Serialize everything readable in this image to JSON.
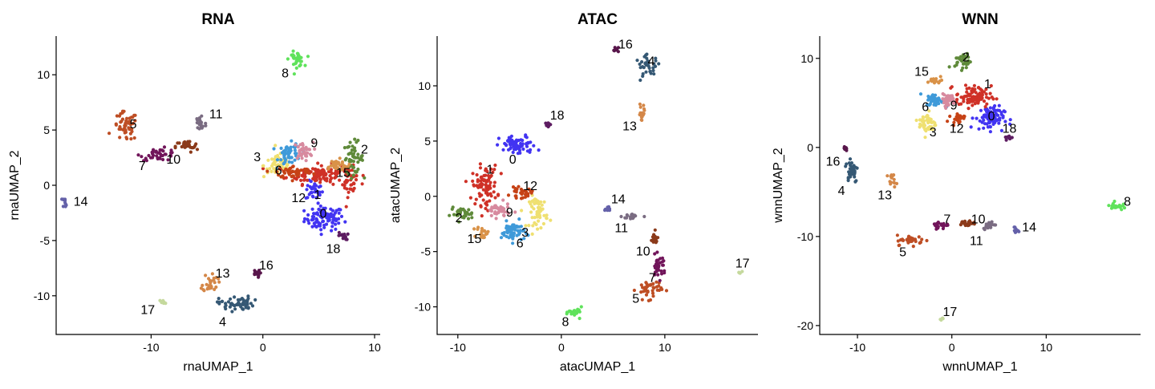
{
  "figure": {
    "panels": [
      "RNA",
      "ATAC",
      "WNN"
    ]
  },
  "chart_data": [
    {
      "type": "scatter",
      "title": "RNA",
      "xlabel": "rnaUMAP_1",
      "ylabel": "rnaUMAP_2",
      "xlim": [
        -18.5,
        10.5
      ],
      "ylim": [
        -13.5,
        13.5
      ],
      "xticks": [
        -10,
        0,
        10
      ],
      "yticks": [
        -10,
        -5,
        0,
        5,
        10
      ],
      "grid": false,
      "legend": "none",
      "clusters": [
        {
          "id": "0",
          "color": "#4234f2",
          "label_pos": [
            5.4,
            -2.5
          ],
          "blobs": [
            [
              5.5,
              -3.0,
              1.6,
              1.0,
              90
            ],
            [
              4.6,
              -0.5,
              0.7,
              0.8,
              30
            ]
          ]
        },
        {
          "id": "1",
          "color": "#cf3127",
          "label_pos": [
            4.9,
            -0.8
          ],
          "blobs": [
            [
              5.0,
              1.0,
              2.6,
              0.8,
              120
            ],
            [
              7.8,
              0.3,
              0.6,
              1.2,
              30
            ]
          ]
        },
        {
          "id": "2",
          "color": "#5f8a3a",
          "label_pos": [
            9.1,
            3.3
          ],
          "blobs": [
            [
              8.1,
              2.5,
              0.8,
              1.3,
              50
            ]
          ]
        },
        {
          "id": "3",
          "color": "#efe071",
          "label_pos": [
            -0.5,
            2.6
          ],
          "blobs": [
            [
              1.4,
              1.8,
              1.2,
              1.0,
              55
            ]
          ]
        },
        {
          "id": "5",
          "color": "#be4e24",
          "label_pos": [
            -11.6,
            5.6
          ],
          "blobs": [
            [
              -12.3,
              5.3,
              1.0,
              1.2,
              50
            ]
          ]
        },
        {
          "id": "6",
          "color": "#3f9ad9",
          "label_pos": [
            1.4,
            1.4
          ],
          "blobs": [
            [
              2.4,
              2.8,
              0.9,
              0.9,
              50
            ]
          ]
        },
        {
          "id": "7",
          "color": "#71155a",
          "label_pos": [
            -10.8,
            1.8
          ],
          "blobs": [
            [
              -9.3,
              2.8,
              1.5,
              0.5,
              40
            ]
          ]
        },
        {
          "id": "8",
          "color": "#5fe25b",
          "label_pos": [
            2.0,
            10.2
          ],
          "blobs": [
            [
              3.0,
              11.4,
              0.6,
              0.6,
              30
            ]
          ]
        },
        {
          "id": "9",
          "color": "#d78a9f",
          "label_pos": [
            4.6,
            3.9
          ],
          "blobs": [
            [
              3.6,
              3.1,
              0.8,
              0.7,
              35
            ]
          ]
        },
        {
          "id": "10",
          "color": "#8b3a1a",
          "label_pos": [
            -8.0,
            2.4
          ],
          "blobs": [
            [
              -6.8,
              3.5,
              0.9,
              0.5,
              30
            ]
          ]
        },
        {
          "id": "11",
          "color": "#7a6c82",
          "label_pos": [
            -4.2,
            6.5
          ],
          "blobs": [
            [
              -5.6,
              5.6,
              0.5,
              0.9,
              25
            ]
          ]
        },
        {
          "id": "12",
          "color": "#c64216",
          "label_pos": [
            3.2,
            -1.1
          ],
          "blobs": [
            [
              2.8,
              1.2,
              1.5,
              0.5,
              50
            ]
          ]
        },
        {
          "id": "13",
          "color": "#d48748",
          "label_pos": [
            -3.6,
            -7.9
          ],
          "blobs": [
            [
              -4.7,
              -8.8,
              0.6,
              0.8,
              30
            ]
          ]
        },
        {
          "id": "14",
          "color": "#6461a9",
          "label_pos": [
            -16.3,
            -1.4
          ],
          "blobs": [
            [
              -17.7,
              -1.5,
              0.2,
              0.4,
              10
            ]
          ]
        },
        {
          "id": "15",
          "color": "#d99248",
          "label_pos": [
            7.2,
            1.2
          ],
          "blobs": [
            [
              6.5,
              1.8,
              1.1,
              0.5,
              35
            ]
          ]
        },
        {
          "id": "16",
          "color": "#58164b",
          "label_pos": [
            0.3,
            -7.2
          ],
          "blobs": [
            [
              -0.6,
              -8.0,
              0.3,
              0.3,
              14
            ]
          ]
        },
        {
          "id": "17",
          "color": "#c5d99d",
          "label_pos": [
            -10.3,
            -11.2
          ],
          "blobs": [
            [
              -9.0,
              -10.6,
              0.3,
              0.2,
              8
            ]
          ]
        },
        {
          "id": "18",
          "color": "#5d1c61",
          "label_pos": [
            6.3,
            -5.7
          ],
          "blobs": [
            [
              7.2,
              -4.6,
              0.4,
              0.3,
              12
            ]
          ]
        },
        {
          "id": "4",
          "color": "#355874",
          "label_pos": [
            -3.6,
            -12.3
          ],
          "blobs": [
            [
              -2.4,
              -10.7,
              1.4,
              0.6,
              55
            ]
          ]
        }
      ]
    },
    {
      "type": "scatter",
      "title": "ATAC",
      "xlabel": "atacUMAP_1",
      "ylabel": "atacUMAP_2",
      "xlim": [
        -12,
        19
      ],
      "ylim": [
        -12.5,
        14.5
      ],
      "xticks": [
        -10,
        0,
        10
      ],
      "yticks": [
        -10,
        -5,
        0,
        5,
        10
      ],
      "grid": false,
      "legend": "none",
      "clusters": [
        {
          "id": "0",
          "color": "#4234f2",
          "label_pos": [
            -4.7,
            3.4
          ],
          "blobs": [
            [
              -4.2,
              4.6,
              1.6,
              0.8,
              70
            ]
          ]
        },
        {
          "id": "1",
          "color": "#cf3127",
          "label_pos": [
            -6.9,
            2.5
          ],
          "blobs": [
            [
              -7.4,
              1.0,
              1.1,
              1.6,
              90
            ]
          ]
        },
        {
          "id": "2",
          "color": "#5f8a3a",
          "label_pos": [
            -9.9,
            -1.9
          ],
          "blobs": [
            [
              -9.6,
              -1.6,
              1.0,
              0.5,
              35
            ]
          ]
        },
        {
          "id": "3",
          "color": "#efe071",
          "label_pos": [
            -3.5,
            -3.2
          ],
          "blobs": [
            [
              -2.2,
              -1.4,
              0.8,
              1.3,
              55
            ]
          ]
        },
        {
          "id": "4",
          "color": "#355874",
          "label_pos": [
            8.7,
            12.3
          ],
          "blobs": [
            [
              8.4,
              11.8,
              1.1,
              0.8,
              35
            ]
          ]
        },
        {
          "id": "5",
          "color": "#be4e24",
          "label_pos": [
            7.2,
            -9.2
          ],
          "blobs": [
            [
              8.5,
              -8.4,
              1.1,
              0.8,
              40
            ]
          ]
        },
        {
          "id": "6",
          "color": "#3f9ad9",
          "label_pos": [
            -4.0,
            -4.2
          ],
          "blobs": [
            [
              -4.7,
              -3.2,
              1.0,
              0.8,
              55
            ]
          ]
        },
        {
          "id": "7",
          "color": "#71155a",
          "label_pos": [
            8.8,
            -7.3
          ],
          "blobs": [
            [
              9.4,
              -6.4,
              0.6,
              0.9,
              35
            ]
          ]
        },
        {
          "id": "8",
          "color": "#5fe25b",
          "label_pos": [
            0.4,
            -11.3
          ],
          "blobs": [
            [
              1.4,
              -10.5,
              0.6,
              0.4,
              25
            ]
          ]
        },
        {
          "id": "9",
          "color": "#d78a9f",
          "label_pos": [
            -5.0,
            -1.4
          ],
          "blobs": [
            [
              -6.1,
              -1.3,
              1.0,
              0.6,
              40
            ]
          ]
        },
        {
          "id": "10",
          "color": "#8b3a1a",
          "label_pos": [
            7.9,
            -4.9
          ],
          "blobs": [
            [
              9.0,
              -3.9,
              0.4,
              0.6,
              15
            ]
          ]
        },
        {
          "id": "11",
          "color": "#7a6c82",
          "label_pos": [
            5.8,
            -2.8
          ],
          "blobs": [
            [
              6.9,
              -1.8,
              0.9,
              0.3,
              18
            ]
          ]
        },
        {
          "id": "12",
          "color": "#c64216",
          "label_pos": [
            -3.0,
            1.0
          ],
          "blobs": [
            [
              -3.9,
              0.3,
              0.9,
              0.4,
              30
            ]
          ]
        },
        {
          "id": "13",
          "color": "#d48748",
          "label_pos": [
            6.6,
            6.4
          ],
          "blobs": [
            [
              7.8,
              7.5,
              0.3,
              0.9,
              15
            ]
          ]
        },
        {
          "id": "14",
          "color": "#6461a9",
          "label_pos": [
            5.5,
            -0.2
          ],
          "blobs": [
            [
              4.5,
              -1.1,
              0.4,
              0.2,
              10
            ]
          ]
        },
        {
          "id": "15",
          "color": "#d99248",
          "label_pos": [
            -8.4,
            -3.8
          ],
          "blobs": [
            [
              -7.6,
              -3.3,
              0.5,
              0.5,
              20
            ]
          ]
        },
        {
          "id": "16",
          "color": "#58164b",
          "label_pos": [
            6.2,
            13.8
          ],
          "blobs": [
            [
              5.2,
              13.3,
              0.3,
              0.2,
              8
            ]
          ]
        },
        {
          "id": "17",
          "color": "#c5d99d",
          "label_pos": [
            17.5,
            -6.0
          ],
          "blobs": [
            [
              17.3,
              -6.9,
              0.15,
              0.15,
              5
            ]
          ]
        },
        {
          "id": "18",
          "color": "#5d1c61",
          "label_pos": [
            -0.4,
            7.4
          ],
          "blobs": [
            [
              -1.3,
              6.6,
              0.3,
              0.4,
              10
            ]
          ]
        }
      ]
    },
    {
      "type": "scatter",
      "title": "WNN",
      "xlabel": "wnnUMAP_1",
      "ylabel": "wnnUMAP_2",
      "xlim": [
        -14,
        20
      ],
      "ylim": [
        -21,
        12.5
      ],
      "xticks": [
        -10,
        0,
        10
      ],
      "yticks": [
        -20,
        -10,
        0,
        10
      ],
      "grid": false,
      "legend": "none",
      "clusters": [
        {
          "id": "0",
          "color": "#4234f2",
          "label_pos": [
            4.2,
            3.6
          ],
          "blobs": [
            [
              4.0,
              3.3,
              1.4,
              1.2,
              80
            ]
          ]
        },
        {
          "id": "1",
          "color": "#cf3127",
          "label_pos": [
            3.8,
            7.2
          ],
          "blobs": [
            [
              2.3,
              5.7,
              1.7,
              1.1,
              90
            ]
          ]
        },
        {
          "id": "2",
          "color": "#5f8a3a",
          "label_pos": [
            1.5,
            10.2
          ],
          "blobs": [
            [
              1.2,
              9.7,
              0.8,
              0.8,
              35
            ]
          ]
        },
        {
          "id": "3",
          "color": "#efe071",
          "label_pos": [
            -2.0,
            1.8
          ],
          "blobs": [
            [
              -2.6,
              2.7,
              0.8,
              1.2,
              45
            ]
          ]
        },
        {
          "id": "4",
          "color": "#355874",
          "label_pos": [
            -11.7,
            -4.8
          ],
          "blobs": [
            [
              -10.6,
              -2.5,
              0.6,
              1.3,
              40
            ]
          ]
        },
        {
          "id": "5",
          "color": "#be4e24",
          "label_pos": [
            -5.2,
            -11.7
          ],
          "blobs": [
            [
              -4.3,
              -10.4,
              1.4,
              0.5,
              35
            ]
          ]
        },
        {
          "id": "6",
          "color": "#3f9ad9",
          "label_pos": [
            -2.8,
            4.6
          ],
          "blobs": [
            [
              -1.8,
              5.3,
              0.8,
              0.6,
              45
            ]
          ]
        },
        {
          "id": "7",
          "color": "#71155a",
          "label_pos": [
            -0.5,
            -8.0
          ],
          "blobs": [
            [
              -1.2,
              -8.7,
              0.8,
              0.4,
              25
            ]
          ]
        },
        {
          "id": "8",
          "color": "#5fe25b",
          "label_pos": [
            18.6,
            -6.0
          ],
          "blobs": [
            [
              17.4,
              -6.6,
              0.6,
              0.4,
              25
            ]
          ]
        },
        {
          "id": "9",
          "color": "#d78a9f",
          "label_pos": [
            0.2,
            4.8
          ],
          "blobs": [
            [
              -0.4,
              5.3,
              0.7,
              0.6,
              35
            ]
          ]
        },
        {
          "id": "10",
          "color": "#8b3a1a",
          "label_pos": [
            2.8,
            -8.0
          ],
          "blobs": [
            [
              1.5,
              -8.5,
              1.2,
              0.3,
              25
            ]
          ]
        },
        {
          "id": "11",
          "color": "#7a6c82",
          "label_pos": [
            2.6,
            -10.4
          ],
          "blobs": [
            [
              3.9,
              -8.7,
              0.5,
              0.4,
              20
            ]
          ]
        },
        {
          "id": "12",
          "color": "#c64216",
          "label_pos": [
            0.5,
            2.2
          ],
          "blobs": [
            [
              0.6,
              3.3,
              0.7,
              0.5,
              25
            ]
          ]
        },
        {
          "id": "13",
          "color": "#d48748",
          "label_pos": [
            -7.1,
            -5.3
          ],
          "blobs": [
            [
              -6.3,
              -3.7,
              0.4,
              0.6,
              15
            ]
          ]
        },
        {
          "id": "14",
          "color": "#6461a9",
          "label_pos": [
            8.2,
            -8.9
          ],
          "blobs": [
            [
              6.9,
              -9.3,
              0.3,
              0.5,
              10
            ]
          ]
        },
        {
          "id": "15",
          "color": "#d99248",
          "label_pos": [
            -3.2,
            8.6
          ],
          "blobs": [
            [
              -1.8,
              7.5,
              0.7,
              0.3,
              20
            ]
          ]
        },
        {
          "id": "16",
          "color": "#58164b",
          "label_pos": [
            -12.6,
            -1.5
          ],
          "blobs": [
            [
              -11.3,
              -0.1,
              0.2,
              0.3,
              8
            ]
          ]
        },
        {
          "id": "17",
          "color": "#c5d99d",
          "label_pos": [
            -0.2,
            -18.4
          ],
          "blobs": [
            [
              -1.0,
              -19.3,
              0.2,
              0.15,
              5
            ]
          ]
        },
        {
          "id": "18",
          "color": "#5d1c61",
          "label_pos": [
            6.1,
            2.2
          ],
          "blobs": [
            [
              6.1,
              1.1,
              0.3,
              0.3,
              10
            ]
          ]
        }
      ]
    }
  ]
}
